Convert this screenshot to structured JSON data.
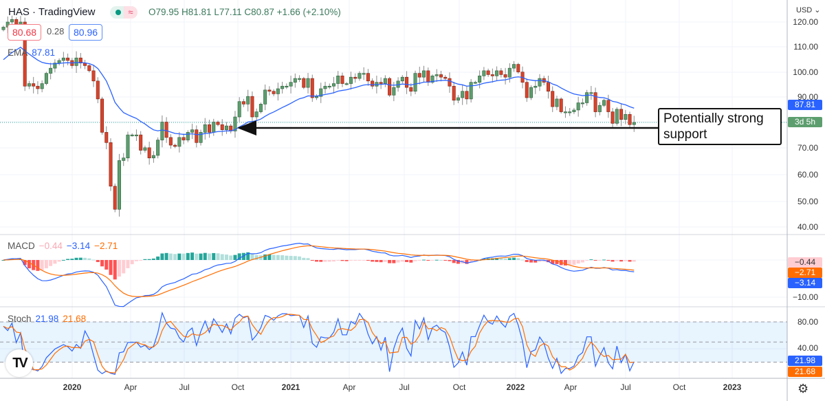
{
  "header": {
    "symbol_title": "HAS · TradingView",
    "status_wave": "≈",
    "ohlc": "O79.95 H81.81 L77.11 C80.87 +1.66 (+2.10%)",
    "bid": "80.68",
    "spread": "0.28",
    "ask": "80.96"
  },
  "indicators": {
    "ema": {
      "name": "EMA",
      "value": "87.81",
      "color": "#2962ff"
    },
    "macd": {
      "name": "MACD",
      "hist": "−0.44",
      "macd": "−3.14",
      "signal": "−2.71",
      "hist_color": "#f7a9b4",
      "macd_color": "#2962ff",
      "signal_color": "#ff6d00"
    },
    "stoch": {
      "name": "Stoch",
      "k": "21.98",
      "d": "21.68",
      "k_color": "#2962ff",
      "d_color": "#ff6d00"
    }
  },
  "price_axis": {
    "currency": "USD ⌄",
    "ticks": [
      "120.00",
      "110.00",
      "100.00",
      "90.00",
      "70.00",
      "60.00",
      "50.00",
      "40.00"
    ],
    "ema_tag": "87.81",
    "countdown_tag": "3d 5h",
    "macd_ticks": [
      "−10.00"
    ],
    "macd_tags": [
      "−0.44",
      "−2.71",
      "−3.14"
    ],
    "stoch_ticks": [
      "80.00",
      "40.00"
    ],
    "stoch_tags": [
      "21.98",
      "21.68"
    ]
  },
  "time_axis": {
    "labels": [
      {
        "text": "2020",
        "bold": true
      },
      {
        "text": "Apr"
      },
      {
        "text": "Jul"
      },
      {
        "text": "Oct"
      },
      {
        "text": "2021",
        "bold": true
      },
      {
        "text": "Apr"
      },
      {
        "text": "Jul"
      },
      {
        "text": "Oct"
      },
      {
        "text": "2022",
        "bold": true
      },
      {
        "text": "Apr"
      },
      {
        "text": "Jul"
      },
      {
        "text": "Oct"
      },
      {
        "text": "2023",
        "bold": true
      }
    ]
  },
  "annotation": {
    "text": "Potentially strong support",
    "support_price": 77.1
  },
  "colors": {
    "up": "#5d9e6e",
    "down": "#d9432c",
    "ema": "#2962ff",
    "last_price": "#26a69a"
  },
  "chart_data": {
    "type": "candlestick",
    "symbol": "HAS",
    "interval": "weekly",
    "ylim": [
      40,
      120
    ],
    "macd_ylim": [
      -12,
      5
    ],
    "stoch_ylim": [
      0,
      100
    ],
    "stoch_levels": [
      80,
      50,
      20
    ],
    "last_close": 80.87,
    "closes": [
      118,
      120,
      121,
      119,
      120,
      95,
      96,
      95,
      94,
      96,
      100,
      102,
      104,
      105,
      106,
      105,
      103,
      106,
      104,
      103,
      101,
      97,
      90,
      77,
      73,
      56,
      47,
      66,
      67,
      76,
      76,
      76,
      70,
      71,
      67,
      68,
      74,
      81,
      75,
      72,
      71.5,
      75,
      74,
      77,
      78,
      73,
      77,
      80,
      77,
      81,
      80,
      78,
      79.5,
      77.5,
      83,
      89,
      88,
      91,
      83,
      85,
      88,
      93.5,
      93,
      92,
      94,
      95,
      95,
      96.5,
      98,
      98,
      94.5,
      98,
      90.5,
      91,
      94,
      95,
      95,
      96,
      99,
      96,
      96,
      98.5,
      98,
      100,
      100,
      97,
      95,
      96.5,
      96,
      98,
      91.5,
      94.5,
      97,
      98.5,
      94.5,
      93,
      100,
      98.5,
      101,
      96.5,
      99,
      99.5,
      98.5,
      98,
      95,
      89.5,
      90.5,
      93,
      90,
      96.5,
      96.5,
      99,
      101,
      99.5,
      99,
      101,
      99.5,
      98.5,
      102,
      103.5,
      100.5,
      96.5,
      90.5,
      94.5,
      95,
      98,
      96.5,
      93,
      87,
      90,
      85,
      85,
      85,
      85.7,
      88.5,
      88.5,
      92.5,
      92.5,
      85,
      87.5,
      89.5,
      85,
      80.5,
      86,
      82,
      84,
      80,
      80.87
    ]
  }
}
